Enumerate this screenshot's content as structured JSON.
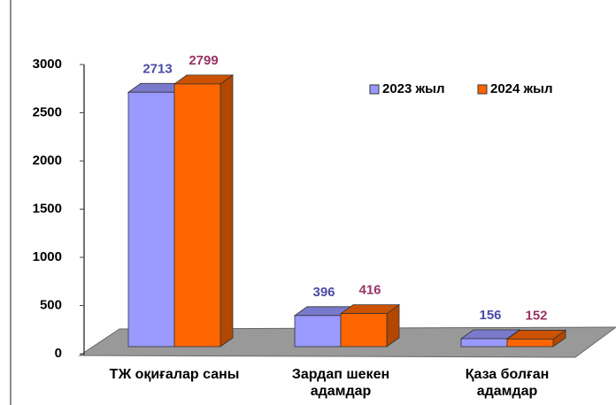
{
  "chart_data": {
    "type": "bar",
    "categories": [
      "ТЖ оқиғалар саны",
      "Зардап шекен адамдар",
      "Қаза болған адамдар"
    ],
    "series": [
      {
        "name": "2023 жыл",
        "color": "#9999ff",
        "values": [
          2713,
          396,
          156
        ]
      },
      {
        "name": "2024 жыл",
        "color": "#ff6600",
        "values": [
          2799,
          416,
          152
        ]
      }
    ],
    "ylim": [
      0,
      3000
    ],
    "yticks": [
      0,
      500,
      1000,
      1500,
      2000,
      2500,
      3000
    ],
    "legend": "upper right"
  }
}
